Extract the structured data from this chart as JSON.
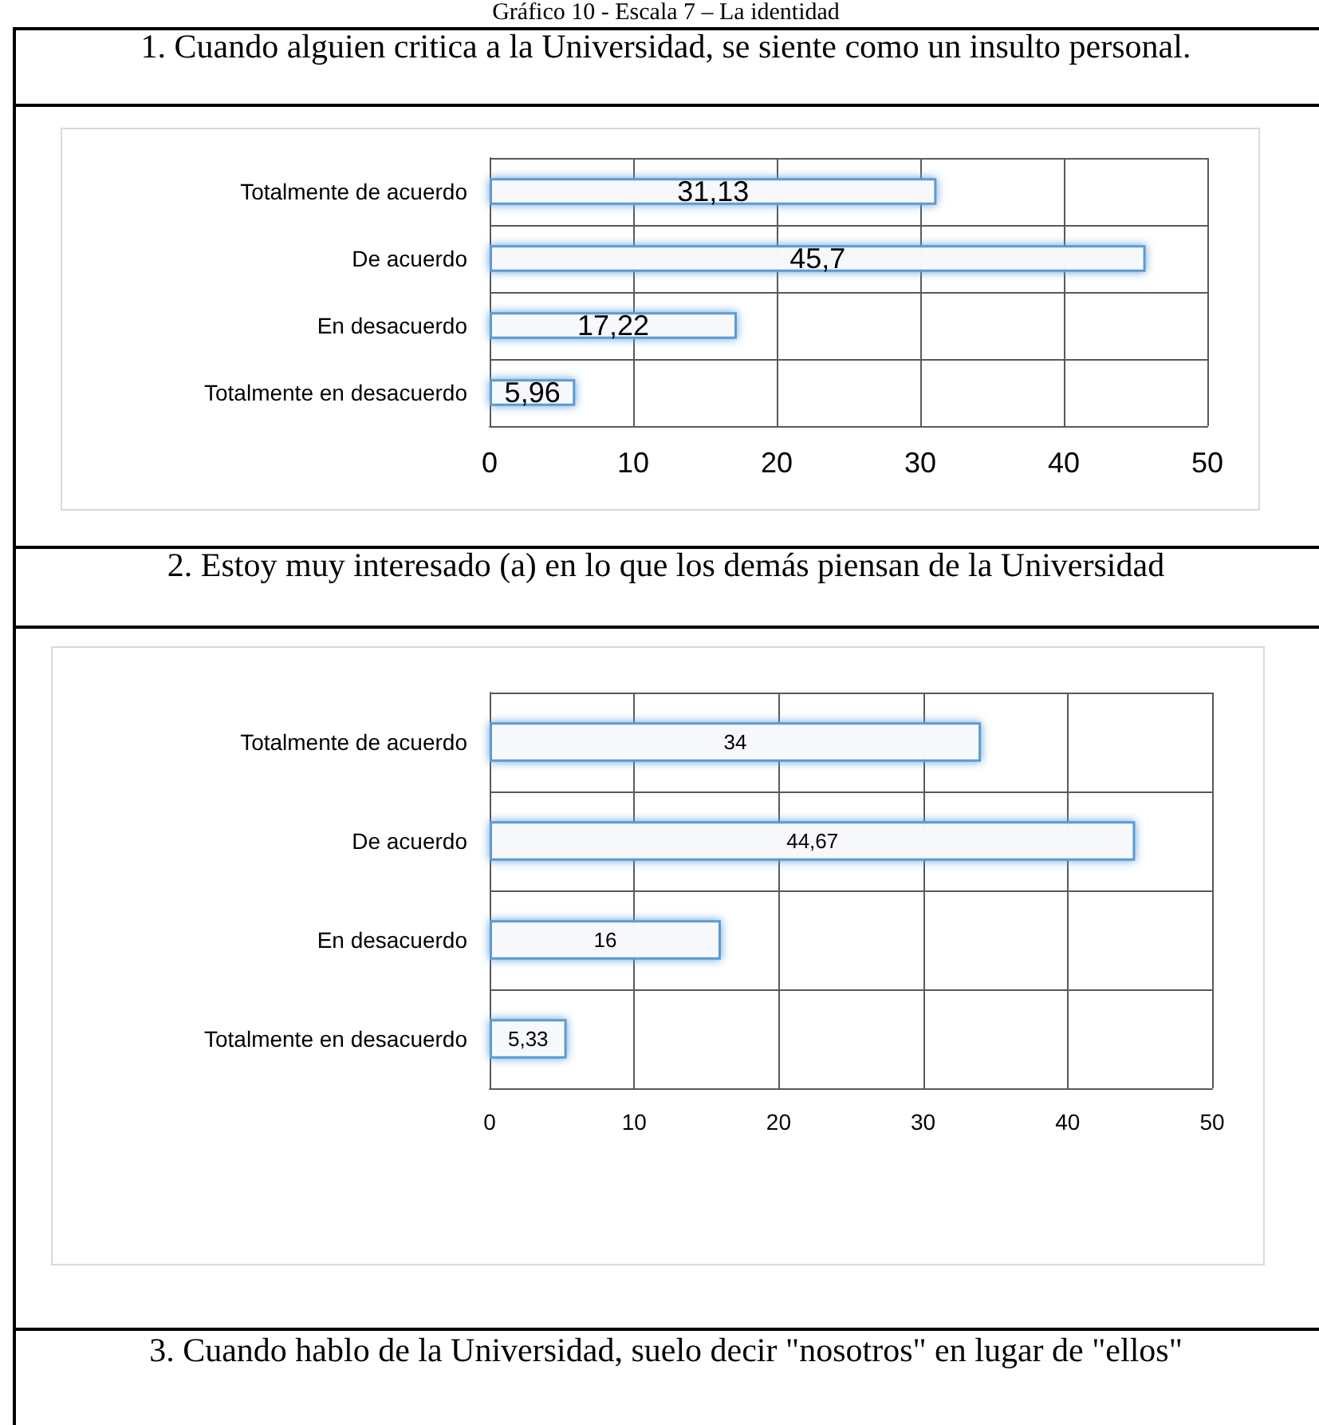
{
  "chart_data": [
    {
      "type": "bar",
      "orientation": "horizontal",
      "title": "1.    Cuando alguien critica a la Universidad, se siente como un insulto personal.",
      "annotations": [
        "Gráfico 10 - Escala 7 – La identidad"
      ],
      "categories": [
        "Totalmente de acuerdo",
        "De acuerdo",
        "En desacuerdo",
        "Totalmente en desacuerdo"
      ],
      "values": [
        31.13,
        45.7,
        17.22,
        5.96
      ],
      "value_labels": [
        "31,13",
        "45,7",
        "17,22",
        "5,96"
      ],
      "color": "#5b9bd5",
      "xlim": [
        0,
        50
      ],
      "xticks": [
        0,
        10,
        20,
        30,
        40,
        50
      ],
      "grid": true
    },
    {
      "type": "bar",
      "orientation": "horizontal",
      "title": "2. Estoy muy interesado (a) en lo que los demás piensan de la Universidad",
      "annotations": [
        "3. Cuando hablo de la Universidad, suelo decir \"nosotros\" en lugar de \"ellos\""
      ],
      "categories": [
        "Totalmente de acuerdo",
        "De acuerdo",
        "En desacuerdo",
        "Totalmente en desacuerdo"
      ],
      "values": [
        34,
        44.67,
        16,
        5.33
      ],
      "value_labels": [
        "34",
        "44,67",
        "16",
        "5,33"
      ],
      "color": "#5b9bd5",
      "xlim": [
        0,
        50
      ],
      "xticks": [
        0,
        10,
        20,
        30,
        40,
        50
      ],
      "grid": true
    }
  ]
}
